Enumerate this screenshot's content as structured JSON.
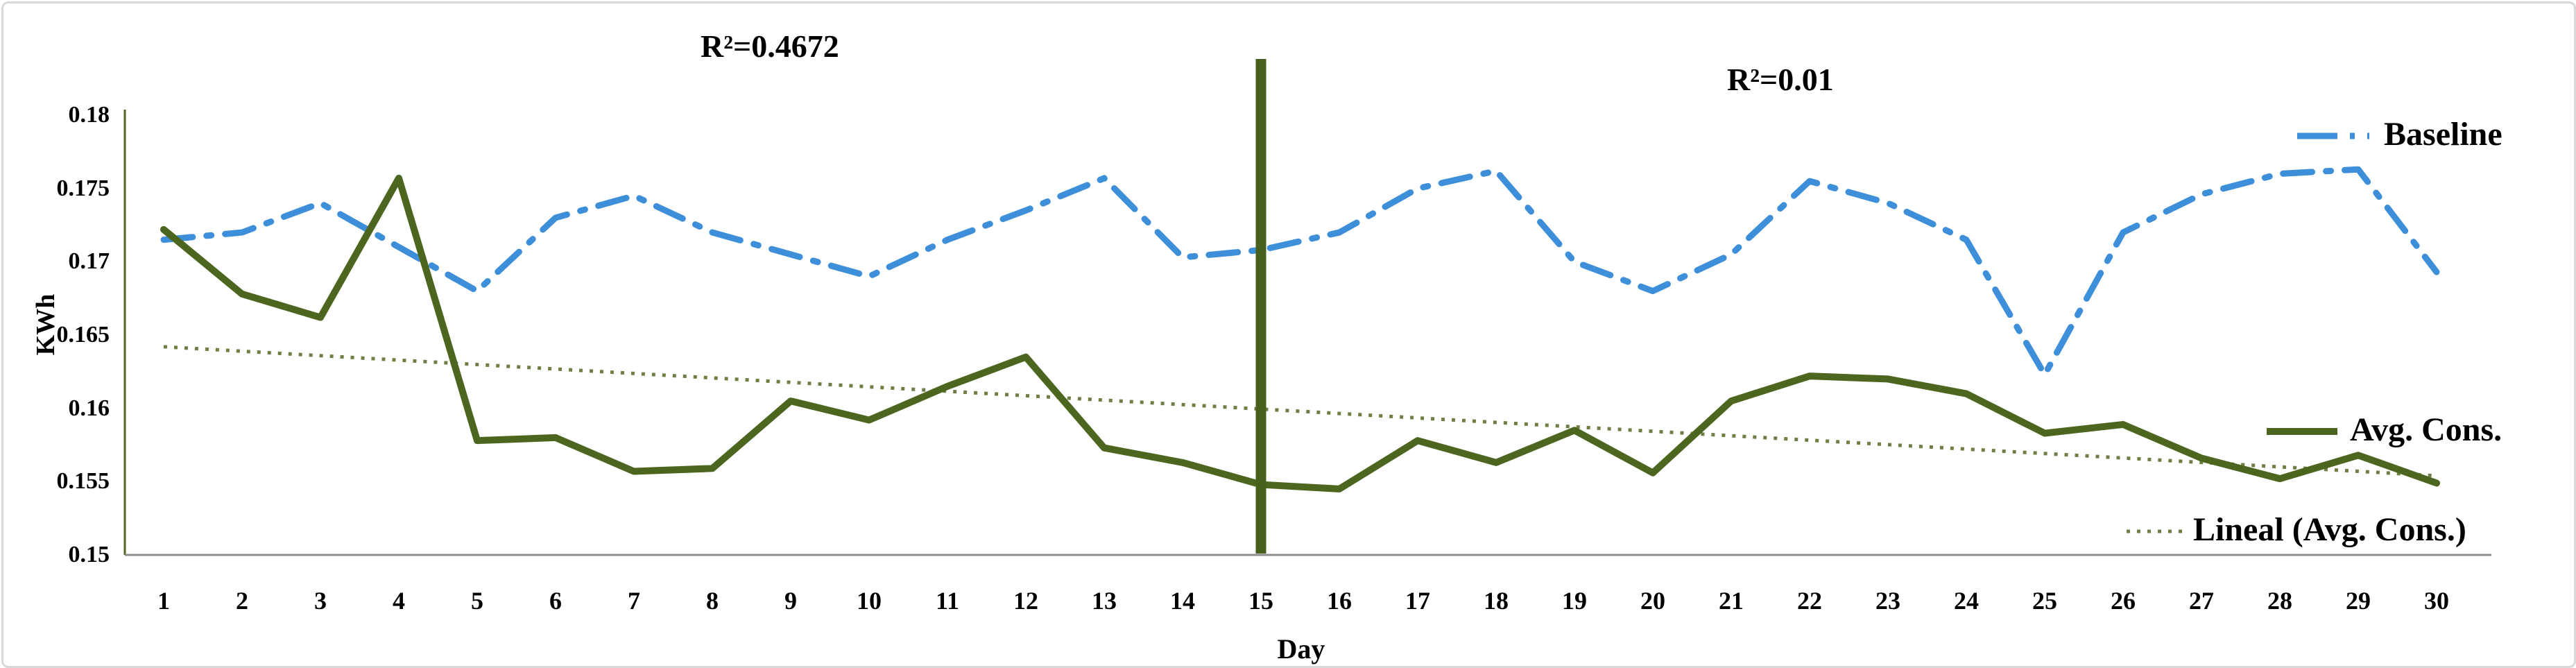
{
  "chart_data": {
    "type": "line",
    "x": [
      1,
      2,
      3,
      4,
      5,
      6,
      7,
      8,
      9,
      10,
      11,
      12,
      13,
      14,
      15,
      16,
      17,
      18,
      19,
      20,
      21,
      22,
      23,
      24,
      25,
      26,
      27,
      28,
      29,
      30
    ],
    "series": [
      {
        "name": "Baseline",
        "style": "dash-dot",
        "color": "#3E8FD9",
        "values": [
          0.1715,
          0.172,
          0.174,
          0.171,
          0.168,
          0.173,
          0.1745,
          0.172,
          0.1705,
          0.169,
          0.1715,
          0.1735,
          0.1757,
          0.1703,
          0.1708,
          0.172,
          0.175,
          0.1762,
          0.17,
          0.168,
          0.1705,
          0.1755,
          0.174,
          0.1715,
          0.1623,
          0.172,
          0.1746,
          0.176,
          0.1763,
          0.1693
        ]
      },
      {
        "name": "Avg. Cons.",
        "style": "solid",
        "color": "#4D661F",
        "values": [
          0.1722,
          0.1678,
          0.1662,
          0.1757,
          0.1578,
          0.158,
          0.1557,
          0.1559,
          0.1605,
          0.1592,
          0.1615,
          0.1635,
          0.1573,
          0.1563,
          0.1548,
          0.1545,
          0.1578,
          0.1563,
          0.1585,
          0.1556,
          0.1605,
          0.1622,
          0.162,
          0.161,
          0.1583,
          0.1589,
          0.1566,
          0.1552,
          0.1568,
          0.1549
        ]
      },
      {
        "name": "Lineal (Avg. Cons.)",
        "style": "dotted",
        "color": "#6E7F45",
        "trend_start": 0.1642,
        "trend_end": 0.1554
      }
    ],
    "annotations": [
      {
        "text": "R²=0.4672",
        "position": "above days 1-15"
      },
      {
        "text": "R²=0.01",
        "position": "above days 16-30"
      }
    ],
    "divider_line": {
      "at_day": 15,
      "color": "#47601C"
    },
    "xlabel": "Day",
    "ylabel": "KWh",
    "ylim": [
      0.15,
      0.18
    ],
    "y_ticks": [
      0.15,
      0.155,
      0.16,
      0.165,
      0.17,
      0.175,
      0.18
    ],
    "grid": false,
    "legend_position": "right"
  },
  "labels": {
    "ylabel": "KWh",
    "xlabel": "Day",
    "rsq_left": "R²=0.4672",
    "rsq_right": "R²=0.01",
    "legend_baseline": "Baseline",
    "legend_avgcons": "Avg. Cons.",
    "legend_lineal": "Lineal (Avg. Cons.)"
  },
  "colors": {
    "baseline": "#3E8FD9",
    "avg_cons": "#4D661F",
    "trend": "#6E7F45",
    "divider": "#47601C",
    "x_axis": "#8C8C8C",
    "y_axis": "#4D661F",
    "frame_border": "#D9D9D9"
  }
}
